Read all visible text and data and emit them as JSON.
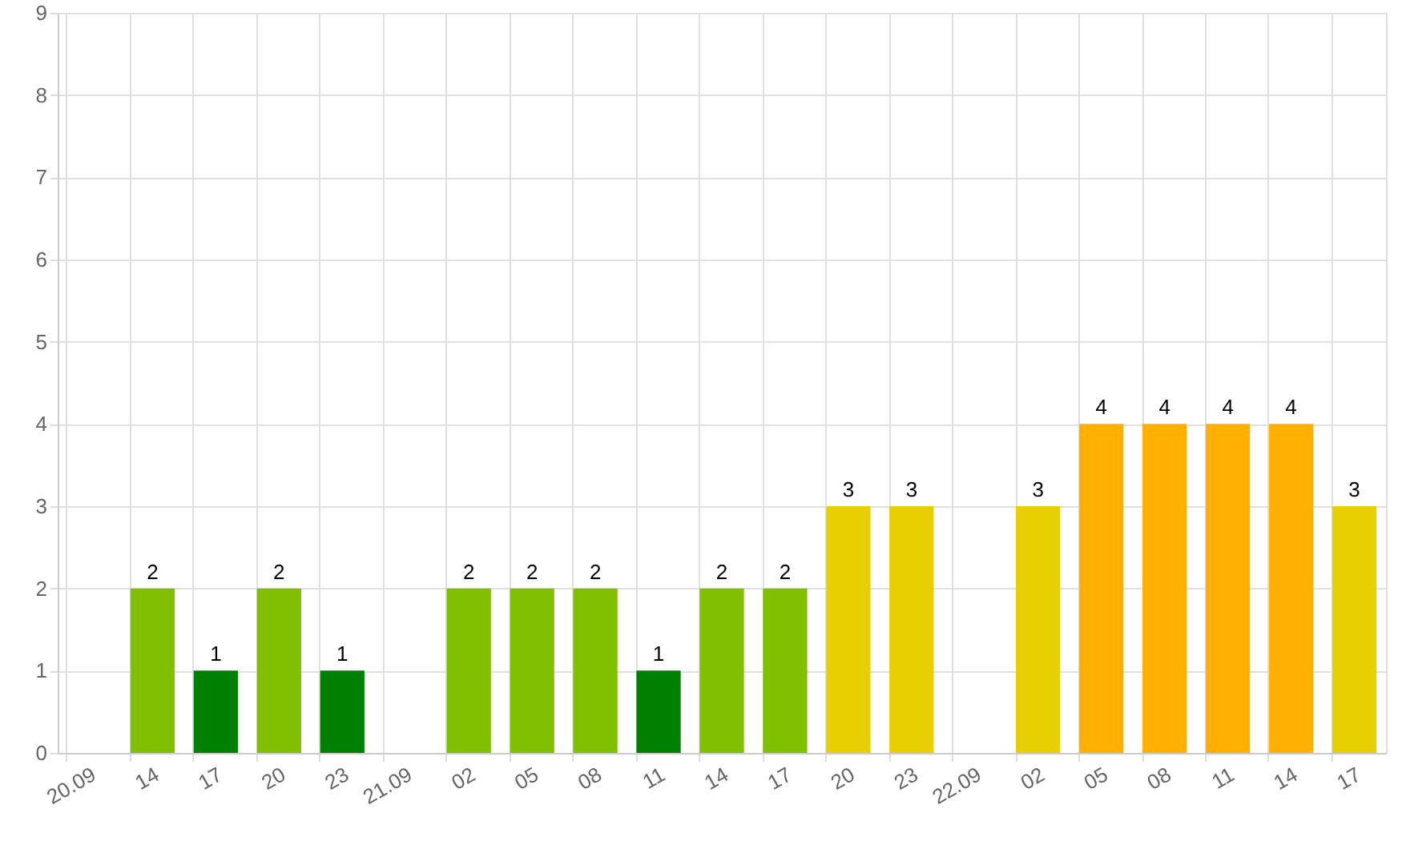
{
  "chart_data": {
    "type": "bar",
    "categories": [
      "20.09",
      "14",
      "17",
      "20",
      "23",
      "21.09",
      "02",
      "05",
      "08",
      "11",
      "14",
      "17",
      "20",
      "23",
      "22.09",
      "02",
      "05",
      "08",
      "11",
      "14",
      "17"
    ],
    "values": [
      null,
      2,
      1,
      2,
      1,
      null,
      2,
      2,
      2,
      1,
      2,
      2,
      3,
      3,
      null,
      3,
      4,
      4,
      4,
      4,
      3
    ],
    "colors": [
      null,
      "#80c000",
      "#008000",
      "#80c000",
      "#008000",
      null,
      "#80c000",
      "#80c000",
      "#80c000",
      "#008000",
      "#80c000",
      "#80c000",
      "#e8d000",
      "#e8d000",
      null,
      "#e8d000",
      "#ffb000",
      "#ffb000",
      "#ffb000",
      "#ffb000",
      "#e8d000"
    ],
    "ylim": [
      0,
      9
    ],
    "yticks": [
      0,
      1,
      2,
      3,
      4,
      5,
      6,
      7,
      8,
      9
    ],
    "grid": true,
    "data_labels": true
  }
}
